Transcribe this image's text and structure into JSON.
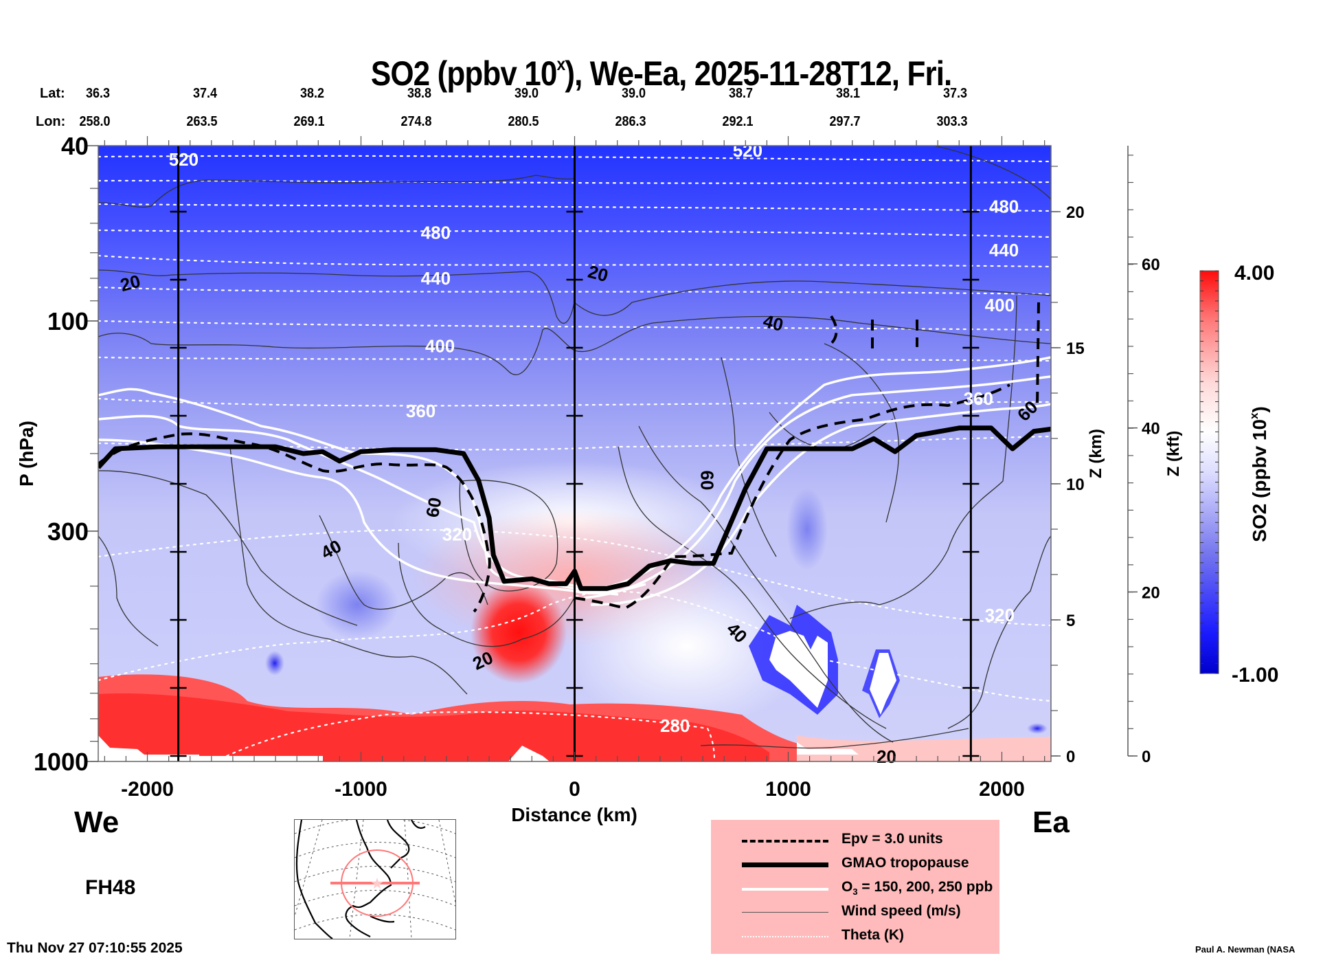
{
  "title": {
    "main": "SO2 (ppbv 10",
    "sup": "x",
    "rest": "), We-Ea, 2025-11-28T12, Fri."
  },
  "header": {
    "lat_label": "Lat:",
    "lon_label": "Lon:",
    "lat": [
      "36.3",
      "37.4",
      "38.2",
      "38.8",
      "39.0",
      "39.0",
      "38.7",
      "38.1",
      "37.3"
    ],
    "lon": [
      "258.0",
      "263.5",
      "269.1",
      "274.8",
      "280.5",
      "286.3",
      "292.1",
      "297.7",
      "303.3"
    ]
  },
  "labels": {
    "we": "We",
    "ea": "Ea",
    "forecast_hour": "FH48",
    "timestamp": "Thu Nov 27 07:10:55 2025",
    "credit": "Paul A. Newman (NASA"
  },
  "legend": {
    "items": [
      {
        "label": "Epv = 3.0 units",
        "style": "dashed-thick"
      },
      {
        "label": "GMAO tropopause",
        "style": "solid-heavy"
      },
      {
        "label": "O",
        "sub": "3",
        "label_rest": " = 150, 200, 250 ppb",
        "style": "solid-white"
      },
      {
        "label": "Wind speed (m/s)",
        "style": "solid-thin"
      },
      {
        "label": "Theta (K)",
        "style": "dotted-white"
      }
    ],
    "background": "#ffbbbb"
  },
  "chart_data": {
    "type": "heatmap",
    "title": "SO2 (ppbv 10^x), We-Ea, 2025-11-28T12, Fri.",
    "xlabel": "Distance (km)",
    "ylabel": "P (hPa)",
    "xlim": [
      -2230,
      2230
    ],
    "ylim_hpa": [
      1000,
      40
    ],
    "y_scale": "log",
    "x_ticks": [
      -2000,
      -1000,
      0,
      1000,
      2000
    ],
    "y_ticks": [
      40,
      100,
      300,
      1000
    ],
    "right_axis_km": {
      "label": "Z (km)",
      "ticks": [
        0,
        5,
        10,
        15,
        20
      ]
    },
    "right_axis_kft": {
      "label": "Z (kft)",
      "ticks": [
        0,
        20,
        40,
        60
      ]
    },
    "vertical_markers_km": [
      -1855,
      0,
      1855
    ],
    "colorbar": {
      "label": "SO2 (ppbv 10^x)",
      "min": -1.0,
      "max": 4.0,
      "min_label": "-1.00",
      "max_label": "4.00",
      "low_color": "#0000dd",
      "mid_color": "#ffffff",
      "high_color": "#ff0000"
    },
    "theta_labels": [
      {
        "text": "520",
        "x": -1830,
        "p": 43
      },
      {
        "text": "520",
        "x": 810,
        "p": 41
      },
      {
        "text": "480",
        "x": -650,
        "p": 63
      },
      {
        "text": "480",
        "x": 2010,
        "p": 55
      },
      {
        "text": "440",
        "x": -650,
        "p": 80
      },
      {
        "text": "440",
        "x": 2010,
        "p": 69
      },
      {
        "text": "400",
        "x": -630,
        "p": 114
      },
      {
        "text": "400",
        "x": 1990,
        "p": 92
      },
      {
        "text": "360",
        "x": -720,
        "p": 160
      },
      {
        "text": "360",
        "x": 1890,
        "p": 150
      },
      {
        "text": "320",
        "x": -550,
        "p": 305
      },
      {
        "text": "320",
        "x": 1990,
        "p": 465
      },
      {
        "text": "280",
        "x": 470,
        "p": 830
      }
    ],
    "wind_labels": [
      {
        "text": "20",
        "x": -2080,
        "p": 82,
        "rot": -15
      },
      {
        "text": "20",
        "x": 110,
        "p": 78,
        "rot": 15
      },
      {
        "text": "40",
        "x": 930,
        "p": 101,
        "rot": 15
      },
      {
        "text": "40",
        "x": -1140,
        "p": 330,
        "rot": -30
      },
      {
        "text": "60",
        "x": -660,
        "p": 265,
        "rot": -80
      },
      {
        "text": "60",
        "x": 620,
        "p": 230,
        "rot": 90
      },
      {
        "text": "20",
        "x": -430,
        "p": 590,
        "rot": -25
      },
      {
        "text": "40",
        "x": 760,
        "p": 510,
        "rot": 45
      },
      {
        "text": "20",
        "x": 1460,
        "p": 975,
        "rot": 0
      },
      {
        "text": "60",
        "x": 2120,
        "p": 160,
        "rot": -45
      }
    ],
    "theta_levels_K": [
      280,
      320,
      360,
      400,
      440,
      480,
      520
    ],
    "wind_levels_ms": [
      20,
      40,
      60
    ],
    "o3_levels_ppb": [
      150,
      200,
      250
    ],
    "epv_level": 3.0,
    "tropopause_hpa": [
      [
        -2230,
        215
      ],
      [
        -2150,
        195
      ],
      [
        -1950,
        193
      ],
      [
        -1400,
        193
      ],
      [
        -1270,
        200
      ],
      [
        -1180,
        198
      ],
      [
        -1100,
        208
      ],
      [
        -1000,
        198
      ],
      [
        -850,
        196
      ],
      [
        -650,
        196
      ],
      [
        -520,
        200
      ],
      [
        -450,
        230
      ],
      [
        -400,
        280
      ],
      [
        -380,
        340
      ],
      [
        -330,
        390
      ],
      [
        -200,
        385
      ],
      [
        -120,
        395
      ],
      [
        -40,
        395
      ],
      [
        0,
        370
      ],
      [
        30,
        405
      ],
      [
        150,
        405
      ],
      [
        250,
        395
      ],
      [
        350,
        360
      ],
      [
        450,
        350
      ],
      [
        550,
        355
      ],
      [
        650,
        355
      ],
      [
        800,
        240
      ],
      [
        900,
        195
      ],
      [
        1300,
        195
      ],
      [
        1400,
        185
      ],
      [
        1500,
        198
      ],
      [
        1600,
        182
      ],
      [
        1800,
        175
      ],
      [
        1950,
        175
      ],
      [
        2050,
        195
      ],
      [
        2150,
        178
      ],
      [
        2230,
        176
      ]
    ],
    "notes": "Filled SO2 field: red (high) near surface 700-1000 hPa west and centre, red blob near -300..0 km at 400-550 hPa; blue in stratosphere increasing aloft; intense blue with white holes near 900-1500 km, 500-700 hPa."
  },
  "ticks_text": {
    "x": [
      "-2000",
      "-1000",
      "0",
      "1000",
      "2000"
    ],
    "y": [
      "40",
      "100",
      "300",
      "1000"
    ],
    "km": [
      "0",
      "5",
      "10",
      "15",
      "20"
    ],
    "kft": [
      "0",
      "20",
      "40",
      "60"
    ]
  },
  "axis_labels": {
    "x": "Distance (km)",
    "y": "P (hPa)",
    "km": "Z (km)",
    "kft": "Z (kft)",
    "cbar": "SO2 (ppbv 10",
    "cbar_sup": "x",
    "cbar_rest": ")"
  }
}
